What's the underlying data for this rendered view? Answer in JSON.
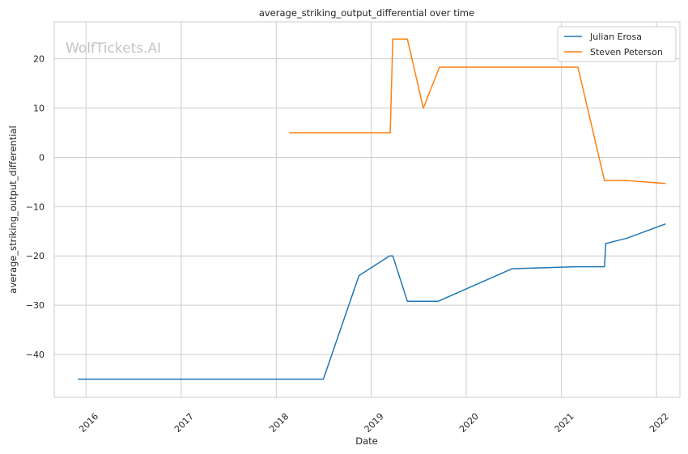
{
  "chart_data": {
    "type": "line",
    "title": "average_striking_output_differential over time",
    "xlabel": "Date",
    "ylabel": "average_striking_output_differential",
    "watermark": "WolfTickets.AI",
    "x_ticks": [
      "2016",
      "2017",
      "2018",
      "2019",
      "2020",
      "2021",
      "2022"
    ],
    "y_ticks": [
      "20",
      "10",
      "0",
      "−10",
      "−20",
      "−30",
      "−40"
    ],
    "xlim": [
      "2015-09-01",
      "2022-04-01"
    ],
    "ylim": [
      -48.7,
      27.5
    ],
    "grid": true,
    "legend_position": "top-right",
    "series": [
      {
        "name": "Julian Erosa",
        "color": "#1f77b4",
        "points": [
          [
            "2015-12-01",
            -45.0
          ],
          [
            "2018-07-01",
            -45.0
          ],
          [
            "2018-11-15",
            -24.0
          ],
          [
            "2019-03-12",
            -20.0
          ],
          [
            "2019-03-25",
            -20.0
          ],
          [
            "2019-05-20",
            -29.2
          ],
          [
            "2019-09-15",
            -29.2
          ],
          [
            "2020-06-25",
            -22.6
          ],
          [
            "2021-02-25",
            -22.2
          ],
          [
            "2021-06-15",
            -22.2
          ],
          [
            "2021-06-20",
            -17.5
          ],
          [
            "2021-09-10",
            -16.4
          ],
          [
            "2022-02-05",
            -13.5
          ]
        ]
      },
      {
        "name": "Steven Peterson",
        "color": "#ff7f0e",
        "points": [
          [
            "2018-02-20",
            5.0
          ],
          [
            "2019-03-15",
            5.0
          ],
          [
            "2019-03-25",
            24.0
          ],
          [
            "2019-05-20",
            24.0
          ],
          [
            "2019-07-20",
            10.0
          ],
          [
            "2019-09-20",
            18.3
          ],
          [
            "2021-03-05",
            18.3
          ],
          [
            "2021-06-15",
            -4.7
          ],
          [
            "2021-09-10",
            -4.7
          ],
          [
            "2022-02-05",
            -5.3
          ]
        ]
      }
    ]
  }
}
